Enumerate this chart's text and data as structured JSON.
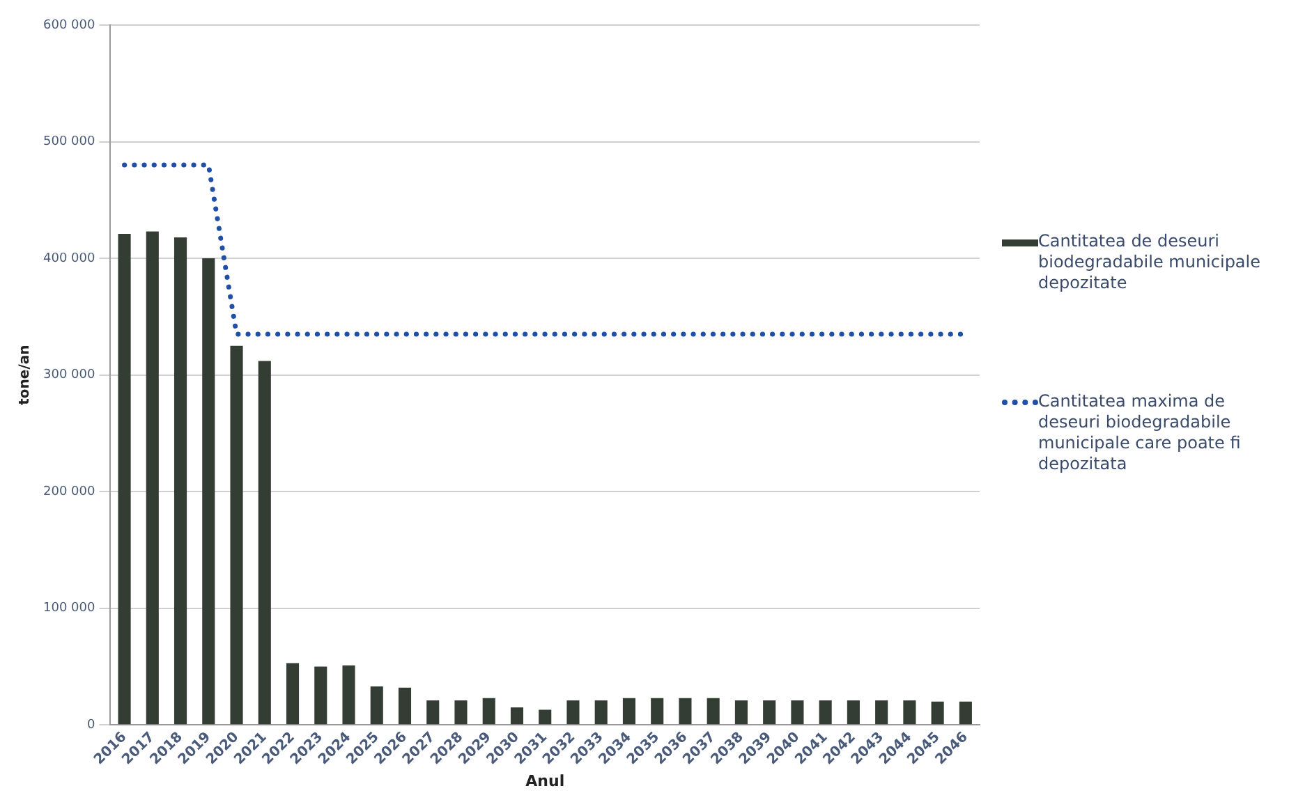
{
  "chart_data": {
    "type": "bar",
    "xlabel": "Anul",
    "ylabel": "tone/an",
    "categories": [
      "2016",
      "2017",
      "2018",
      "2019",
      "2020",
      "2021",
      "2022",
      "2023",
      "2024",
      "2025",
      "2026",
      "2027",
      "2028",
      "2029",
      "2030",
      "2031",
      "2032",
      "2033",
      "2034",
      "2035",
      "2036",
      "2037",
      "2038",
      "2039",
      "2040",
      "2041",
      "2042",
      "2043",
      "2044",
      "2045",
      "2046"
    ],
    "series": [
      {
        "name": "Cantitatea de deseuri biodegradabile municipale depozitate",
        "color": "#333d33",
        "values": [
          421000,
          423000,
          418000,
          400000,
          325000,
          312000,
          53000,
          50000,
          51000,
          33000,
          32000,
          21000,
          21000,
          23000,
          15000,
          13000,
          21000,
          21000,
          23000,
          23000,
          23000,
          23000,
          21000,
          21000,
          21000,
          21000,
          21000,
          21000,
          21000,
          20000,
          20000
        ]
      },
      {
        "name": "Cantitatea maxima de deseuri biodegradabile municipale care poate fi depozitata",
        "type": "line",
        "color": "#1f4fa8",
        "line_style": "dotted",
        "values": [
          480000,
          480000,
          480000,
          480000,
          335000,
          335000,
          335000,
          335000,
          335000,
          335000,
          335000,
          335000,
          335000,
          335000,
          335000,
          335000,
          335000,
          335000,
          335000,
          335000,
          335000,
          335000,
          335000,
          335000,
          335000,
          335000,
          335000,
          335000,
          335000,
          335000,
          335000
        ]
      }
    ],
    "ylim": [
      0,
      600000
    ],
    "yticks": [
      {
        "value": 0,
        "label": "0"
      },
      {
        "value": 100000,
        "label": "100 000"
      },
      {
        "value": 200000,
        "label": "200 000"
      },
      {
        "value": 300000,
        "label": "300 000"
      },
      {
        "value": 400000,
        "label": "400 000"
      },
      {
        "value": 500000,
        "label": "500 000"
      },
      {
        "value": 600000,
        "label": "600 000"
      }
    ],
    "grid": "y",
    "legend": "right",
    "marker": "none"
  }
}
